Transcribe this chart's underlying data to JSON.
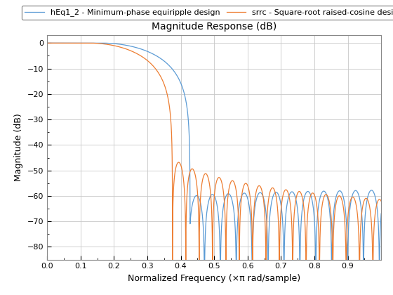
{
  "title": "Magnitude Response (dB)",
  "xlabel": "Normalized Frequency (×π rad/sample)",
  "ylabel": "Magnitude (dB)",
  "xlim": [
    0,
    1.0
  ],
  "ylim": [
    -85,
    3
  ],
  "yticks": [
    0,
    -10,
    -20,
    -30,
    -40,
    -50,
    -60,
    -70,
    -80
  ],
  "xticks": [
    0,
    0.1,
    0.2,
    0.3,
    0.4,
    0.5,
    0.6,
    0.7,
    0.8,
    0.9
  ],
  "line1_color": "#5B9BD5",
  "line2_color": "#ED7D31",
  "line1_label": "hEq1_2 - Minimum-phase equiripple design",
  "line2_label": "srrc - Square-root raised-cosine design",
  "background_color": "#FFFFFF",
  "grid_color": "#C8C8C8",
  "title_fontsize": 10,
  "label_fontsize": 9,
  "tick_fontsize": 8,
  "legend_fontsize": 8
}
